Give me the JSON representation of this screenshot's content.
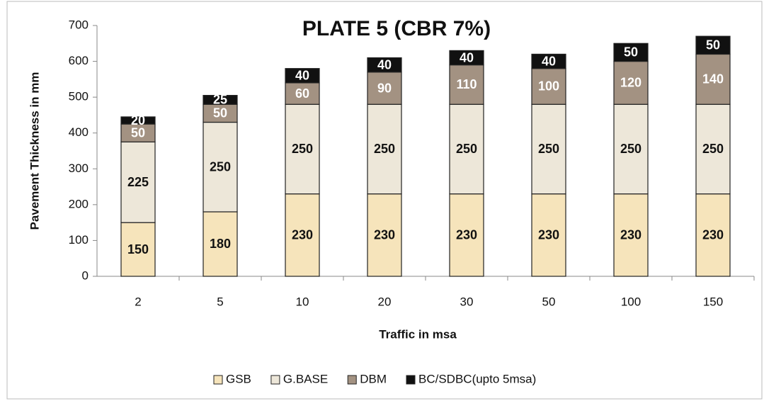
{
  "chart_data": {
    "type": "stacked_bar",
    "title": "PLATE 5 (CBR 7%)",
    "x_label": "Traffic in msa",
    "y_label": "Pavement Thickness in mm",
    "categories": [
      "2",
      "5",
      "10",
      "20",
      "30",
      "50",
      "100",
      "150"
    ],
    "series": [
      {
        "name": "GSB",
        "color": "#f6e4bb",
        "values": [
          150,
          180,
          230,
          230,
          230,
          230,
          230,
          230
        ]
      },
      {
        "name": "G.BASE",
        "color": "#ede7d9",
        "values": [
          225,
          250,
          250,
          250,
          250,
          250,
          250,
          250
        ]
      },
      {
        "name": "DBM",
        "color": "#a39282",
        "values": [
          50,
          50,
          60,
          90,
          110,
          100,
          120,
          140
        ]
      },
      {
        "name": "BC/SDBC(upto 5msa)",
        "color": "#111111",
        "values": [
          20,
          25,
          40,
          40,
          40,
          40,
          50,
          50
        ]
      }
    ],
    "ylim": [
      0,
      700
    ],
    "yticks": [
      0,
      100,
      200,
      300,
      400,
      500,
      600,
      700
    ],
    "legend": "bottom"
  }
}
